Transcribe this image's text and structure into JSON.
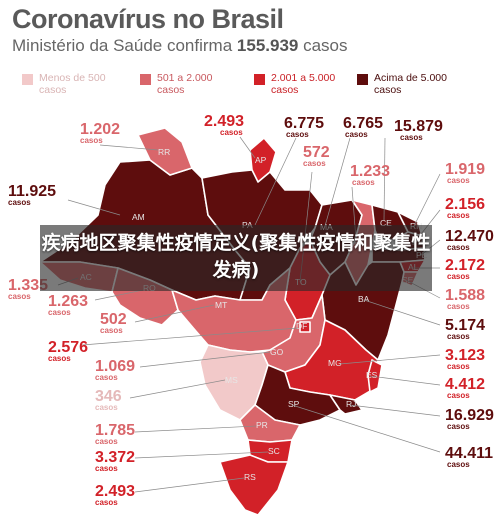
{
  "header": {
    "title": "Coronavírus no Brasil",
    "subtitle_prefix": "Ministério da Saúde confirma",
    "subtitle_count": "155.939",
    "subtitle_suffix": "casos"
  },
  "legend": [
    {
      "label": "Menos de 500 casos",
      "color": "#f2c9c9"
    },
    {
      "label": "501 a 2.000 casos",
      "color": "#d9666b"
    },
    {
      "label": "2.001 a 5.000 casos",
      "color": "#d22128"
    },
    {
      "label": "Acima de 5.000 casos",
      "color": "#5e0d0d"
    }
  ],
  "states": [
    {
      "abbr": "RR",
      "cases": "1.202",
      "color": "#d9666b"
    },
    {
      "abbr": "AP",
      "cases": "2.493",
      "color": "#d22128"
    },
    {
      "abbr": "AM",
      "cases": "11.925",
      "color": "#5e0d0d"
    },
    {
      "abbr": "PA",
      "cases": "6.775",
      "color": "#5e0d0d"
    },
    {
      "abbr": "MA",
      "cases": "6.765",
      "color": "#5e0d0d"
    },
    {
      "abbr": "CE",
      "cases": "15.879",
      "color": "#5e0d0d"
    },
    {
      "abbr": "TO",
      "cases": "572",
      "color": "#d9666b"
    },
    {
      "abbr": "PI",
      "cases": "1.233",
      "color": "#d9666b"
    },
    {
      "abbr": "RN",
      "cases": "1.919",
      "color": "#d9666b"
    },
    {
      "abbr": "PB",
      "cases": "2.156",
      "color": "#d22128"
    },
    {
      "abbr": "PE",
      "cases": "12.470",
      "color": "#5e0d0d"
    },
    {
      "abbr": "AL",
      "cases": "2.172",
      "color": "#d22128"
    },
    {
      "abbr": "SE",
      "cases": "1.588",
      "color": "#d9666b"
    },
    {
      "abbr": "AC",
      "cases": "1.335",
      "color": "#d9666b"
    },
    {
      "abbr": "RO",
      "cases": "1.263",
      "color": "#d9666b"
    },
    {
      "abbr": "MT",
      "cases": "502",
      "color": "#d9666b"
    },
    {
      "abbr": "BA",
      "cases": "5.174",
      "color": "#5e0d0d"
    },
    {
      "abbr": "DF",
      "cases": "2.576",
      "color": "#d22128"
    },
    {
      "abbr": "GO",
      "cases": "1.069",
      "color": "#d9666b"
    },
    {
      "abbr": "MG",
      "cases": "3.123",
      "color": "#d22128"
    },
    {
      "abbr": "ES",
      "cases": "4.412",
      "color": "#d22128"
    },
    {
      "abbr": "MS",
      "cases": "346",
      "color": "#f2c9c9"
    },
    {
      "abbr": "RJ",
      "cases": "16.929",
      "color": "#5e0d0d"
    },
    {
      "abbr": "SP",
      "cases": "44.411",
      "color": "#5e0d0d"
    },
    {
      "abbr": "PR",
      "cases": "1.785",
      "color": "#d9666b"
    },
    {
      "abbr": "SC",
      "cases": "3.372",
      "color": "#d22128"
    },
    {
      "abbr": "RS",
      "cases": "2.493",
      "color": "#d22128"
    }
  ],
  "overlay": {
    "caption": "疾病地区聚集性疫情定义(聚集性疫情和聚集性发病)"
  }
}
